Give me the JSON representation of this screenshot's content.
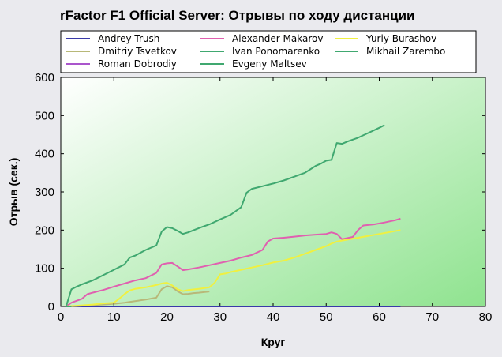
{
  "chart_data": {
    "type": "line",
    "title": "rFactor F1 Official Server: Отрывы по ходу дистанции",
    "xlabel": "Круг",
    "ylabel": "Отрыв (сек.)",
    "xlim": [
      0,
      80
    ],
    "ylim": [
      0,
      600
    ],
    "xticks": [
      0,
      10,
      20,
      30,
      40,
      50,
      60,
      70,
      80
    ],
    "yticks": [
      0,
      100,
      200,
      300,
      400,
      500,
      600
    ],
    "grid": false,
    "legend_position": "top",
    "series": [
      {
        "name": "Andrey Trush",
        "color": "#3a3aa8",
        "x": [
          1,
          64
        ],
        "y": [
          0,
          0
        ]
      },
      {
        "name": "Dmitriy Tsvetkov",
        "color": "#b8b878",
        "x": [
          1,
          3,
          5,
          8,
          10,
          12,
          14,
          16,
          18,
          19,
          20,
          21,
          22,
          23,
          24,
          25,
          26,
          28
        ],
        "y": [
          0,
          1,
          3,
          5,
          7,
          10,
          14,
          18,
          23,
          45,
          53,
          50,
          40,
          32,
          33,
          35,
          36,
          39
        ]
      },
      {
        "name": "Roman Dobrodiy",
        "color": "#aa55cc",
        "x": [
          1,
          2
        ],
        "y": [
          0,
          0
        ]
      },
      {
        "name": "Alexander Makarov",
        "color": "#e060b0",
        "x": [
          1,
          2,
          4,
          5,
          6,
          8,
          10,
          12,
          14,
          16,
          18,
          19,
          20,
          21,
          22,
          23,
          24,
          26,
          28,
          30,
          32,
          34,
          36,
          38,
          39,
          40,
          42,
          44,
          46,
          48,
          50,
          51,
          52,
          53,
          55,
          56,
          57,
          59,
          61,
          63,
          64
        ],
        "y": [
          0,
          10,
          20,
          32,
          36,
          43,
          52,
          60,
          68,
          74,
          88,
          110,
          113,
          114,
          105,
          95,
          97,
          102,
          108,
          114,
          120,
          128,
          135,
          148,
          170,
          178,
          180,
          183,
          186,
          188,
          190,
          194,
          190,
          176,
          182,
          200,
          212,
          215,
          220,
          226,
          230
        ]
      },
      {
        "name": "Ivan Ponomarenko",
        "color": "#40a870",
        "x": [
          1,
          2,
          3,
          4,
          6,
          8,
          10,
          12,
          13,
          14,
          16,
          18,
          19,
          20,
          21,
          22,
          23,
          24,
          26,
          28,
          30,
          32,
          34,
          35,
          36,
          38,
          40,
          42,
          44,
          46,
          48,
          49,
          50,
          51,
          52,
          53,
          54,
          56,
          58,
          60,
          61
        ],
        "y": [
          0,
          45,
          52,
          58,
          68,
          82,
          96,
          110,
          128,
          133,
          148,
          160,
          196,
          208,
          205,
          198,
          190,
          194,
          205,
          215,
          228,
          240,
          260,
          298,
          308,
          315,
          322,
          330,
          340,
          350,
          368,
          374,
          382,
          384,
          428,
          426,
          432,
          442,
          455,
          468,
          475
        ]
      },
      {
        "name": "Evgeny Maltsev",
        "color": "#40a870",
        "x": [
          1,
          2
        ],
        "y": [
          0,
          0
        ]
      },
      {
        "name": "Yuriy Burashov",
        "color": "#f0f040",
        "x": [
          1,
          4,
          6,
          8,
          10,
          11,
          12,
          13,
          14,
          16,
          18,
          19,
          20,
          21,
          22,
          23,
          24,
          26,
          28,
          29,
          30,
          31,
          32,
          34,
          36,
          38,
          40,
          42,
          44,
          46,
          48,
          50,
          51,
          52,
          54,
          56,
          58,
          60,
          62,
          64
        ],
        "y": [
          0,
          3,
          5,
          8,
          10,
          20,
          32,
          42,
          46,
          50,
          56,
          60,
          62,
          55,
          45,
          40,
          43,
          46,
          50,
          62,
          84,
          86,
          90,
          96,
          102,
          108,
          115,
          120,
          128,
          138,
          148,
          158,
          165,
          170,
          175,
          180,
          185,
          190,
          195,
          200
        ]
      },
      {
        "name": "Mikhail Zarembo",
        "color": "#40a870",
        "x": [
          1,
          2
        ],
        "y": [
          0,
          0
        ]
      }
    ]
  }
}
